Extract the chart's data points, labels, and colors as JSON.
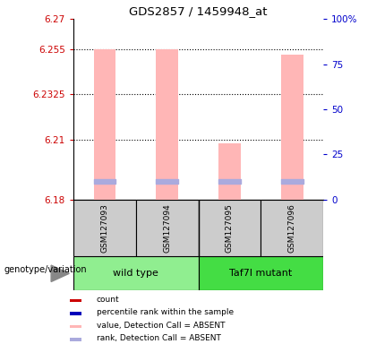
{
  "title": "GDS2857 / 1459948_at",
  "samples": [
    "GSM127093",
    "GSM127094",
    "GSM127095",
    "GSM127096"
  ],
  "ylim_left": [
    6.18,
    6.27
  ],
  "yticks_left": [
    6.18,
    6.21,
    6.2325,
    6.255,
    6.27
  ],
  "ytick_labels_left": [
    "6.18",
    "6.21",
    "6.2325",
    "6.255",
    "6.27"
  ],
  "ylim_right": [
    0,
    100
  ],
  "yticks_right": [
    0,
    25,
    50,
    75,
    100
  ],
  "ytick_labels_right": [
    "0",
    "25",
    "50",
    "75",
    "100%"
  ],
  "bar_bottoms": [
    6.18,
    6.18,
    6.18,
    6.18
  ],
  "bar_tops_pink": [
    6.255,
    6.255,
    6.208,
    6.252
  ],
  "rank_markers": [
    6.189,
    6.189,
    6.189,
    6.189
  ],
  "bar_color_pink": "#FFB6B6",
  "rank_color": "#AAAADD",
  "grid_dotted_at": [
    6.21,
    6.2325,
    6.255
  ],
  "label_color_left": "#CC0000",
  "label_color_right": "#0000CC",
  "wt_color": "#90EE90",
  "taf_color": "#44DD44",
  "sample_box_color": "#CCCCCC",
  "genotype_label": "genotype/variation",
  "legend_colors": [
    "#CC0000",
    "#0000BB",
    "#FFB6B6",
    "#AAAADD"
  ],
  "legend_labels": [
    "count",
    "percentile rank within the sample",
    "value, Detection Call = ABSENT",
    "rank, Detection Call = ABSENT"
  ]
}
